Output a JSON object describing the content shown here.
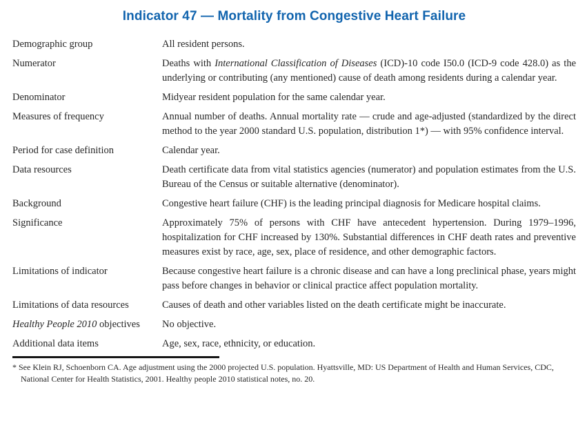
{
  "page": {
    "title": "Indicator 47 — Mortality from Congestive Heart Failure",
    "title_color": "#1164ae",
    "rule_color": "#161616"
  },
  "table": {
    "rows": [
      {
        "label": "Demographic group",
        "value": "All resident persons."
      },
      {
        "label": "Numerator",
        "value_pre": "Deaths with ",
        "value_italic": "International Classification of Diseases",
        "value_post": " (ICD)-10 code I50.0 (ICD-9 code 428.0) as the underlying or contributing (any mentioned) cause of death among residents during a calendar year."
      },
      {
        "label": "Denominator",
        "value": "Midyear resident population for the same calendar year."
      },
      {
        "label": "Measures of frequency",
        "value": "Annual number of deaths. Annual mortality rate — crude and age-adjusted (standardized by the direct method to the year 2000 standard U.S. population, distribution 1*) — with 95% confidence interval."
      },
      {
        "label": "Period for case definition",
        "value": "Calendar year."
      },
      {
        "label": "Data resources",
        "value": "Death certificate data from vital statistics agencies (numerator) and population estimates from the U.S. Bureau of the Census or suitable alternative (denominator)."
      },
      {
        "label": "Background",
        "value": "Congestive heart failure (CHF) is the leading principal diagnosis for Medicare hospital claims."
      },
      {
        "label": "Significance",
        "value": "Approximately 75% of persons with CHF have antecedent hypertension. During 1979–1996, hospitalization for CHF increased by 130%. Substantial differences in CHF death rates and preventive measures exist by race, age, sex, place of residence, and other demographic factors."
      },
      {
        "label": "Limitations of indicator",
        "value": "Because congestive heart failure is a chronic disease and can have a long preclinical phase, years might pass before changes in behavior or clinical practice affect population mortality."
      },
      {
        "label": "Limitations of data resources",
        "value": "Causes of death and other variables listed on the death certificate might be inaccurate."
      },
      {
        "label_italic": "Healthy People 2010",
        "label_post": " objectives",
        "value": "No objective."
      },
      {
        "label": "Additional data items",
        "value": "Age, sex, race, ethnicity, or education."
      }
    ]
  },
  "footnote": {
    "marker": "*",
    "text": "See Klein RJ, Schoenborn CA. Age adjustment using the 2000 projected U.S. population. Hyattsville, MD: US Department of Health and Human Services, CDC, National Center for Health Statistics, 2001. Healthy people 2010 statistical notes, no. 20."
  }
}
